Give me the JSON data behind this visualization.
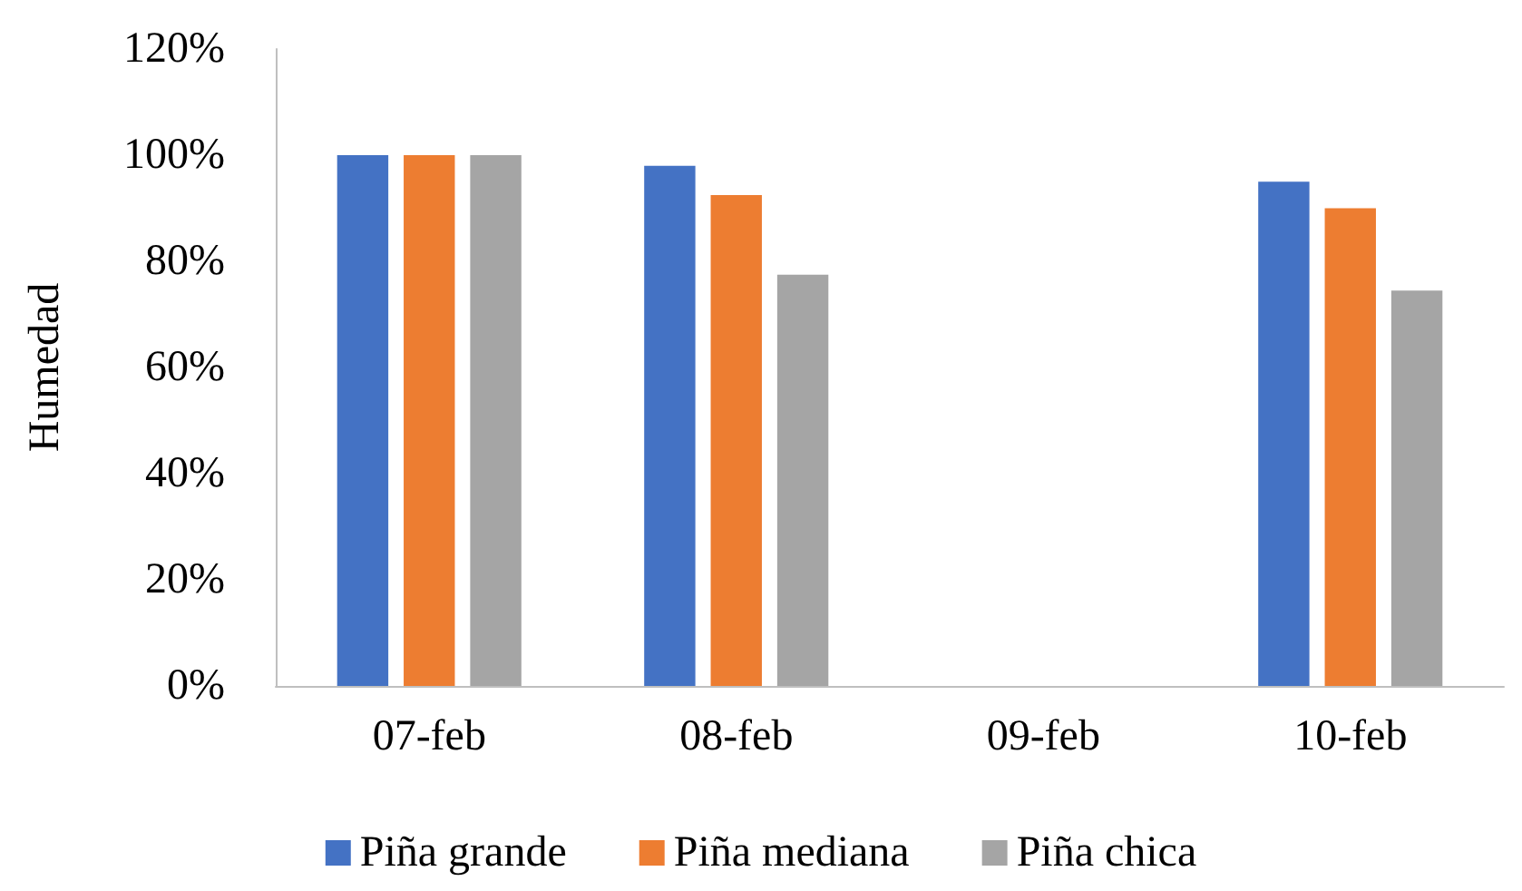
{
  "chart_data": {
    "type": "bar",
    "ylabel": "Humedad",
    "categories": [
      "07-feb",
      "08-feb",
      "09-feb",
      "10-feb"
    ],
    "series": [
      {
        "name": "Piña grande",
        "color": "#4472c4",
        "values": [
          100,
          98,
          null,
          95
        ]
      },
      {
        "name": "Piña mediana",
        "color": "#ed7d31",
        "values": [
          100,
          92.5,
          null,
          90
        ]
      },
      {
        "name": "Piña chica",
        "color": "#a5a5a5",
        "values": [
          100,
          77.5,
          null,
          74.5
        ]
      }
    ],
    "ylim": [
      0,
      120
    ],
    "yticks": [
      {
        "value": 0,
        "label": "0%"
      },
      {
        "value": 20,
        "label": "20%"
      },
      {
        "value": 40,
        "label": "40%"
      },
      {
        "value": 60,
        "label": "60%"
      },
      {
        "value": 80,
        "label": "80%"
      },
      {
        "value": 100,
        "label": "100%"
      },
      {
        "value": 120,
        "label": "120%"
      }
    ],
    "grid": false,
    "legend": "bottom"
  }
}
